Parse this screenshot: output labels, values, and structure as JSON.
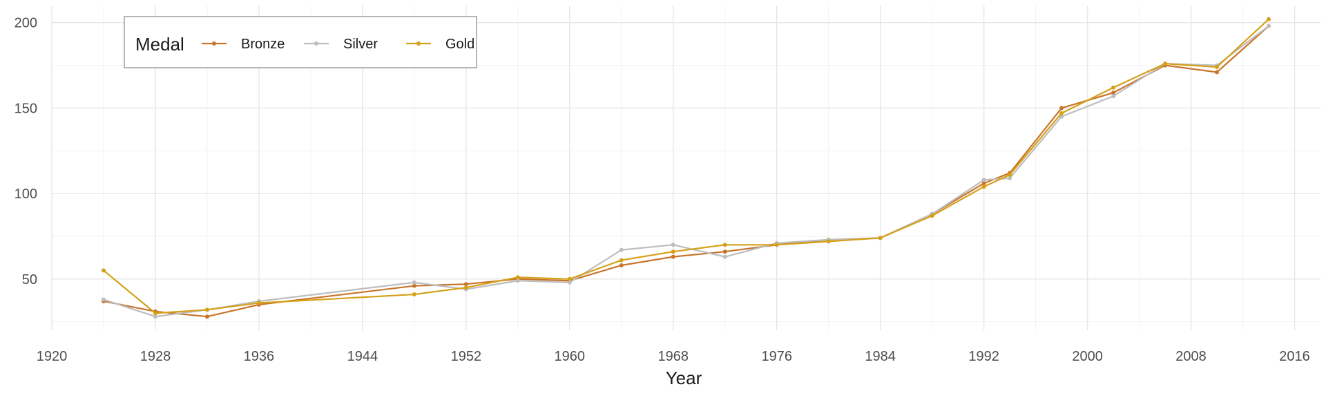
{
  "chart_data": {
    "type": "line",
    "xlabel": "Year",
    "ylabel": "",
    "xlim": [
      1920,
      2018
    ],
    "ylim": [
      20,
      210
    ],
    "x_ticks": [
      1920,
      1928,
      1936,
      1944,
      1952,
      1960,
      1968,
      1976,
      1984,
      1992,
      2000,
      2008,
      2016
    ],
    "y_ticks": [
      50,
      100,
      150,
      200
    ],
    "grid": true,
    "legend": {
      "title": "Medal",
      "position": "top-left",
      "entries": [
        "Bronze",
        "Silver",
        "Gold"
      ]
    },
    "series": [
      {
        "name": "Bronze",
        "color": "#c8742a",
        "x": [
          1924,
          1928,
          1932,
          1936,
          1948,
          1952,
          1956,
          1960,
          1964,
          1968,
          1972,
          1976,
          1980,
          1984,
          1988,
          1992,
          1994,
          1998,
          2002,
          2006,
          2010,
          2014
        ],
        "y": [
          37,
          31,
          28,
          35,
          46,
          47,
          50,
          49,
          58,
          63,
          66,
          70,
          73,
          74,
          88,
          106,
          112,
          150,
          159,
          175,
          171,
          198
        ]
      },
      {
        "name": "Silver",
        "color": "#bdbdbd",
        "x": [
          1924,
          1928,
          1932,
          1936,
          1948,
          1952,
          1956,
          1960,
          1964,
          1968,
          1972,
          1976,
          1980,
          1984,
          1988,
          1992,
          1994,
          1998,
          2002,
          2006,
          2010,
          2014
        ],
        "y": [
          38,
          28,
          32,
          37,
          48,
          44,
          49,
          48,
          67,
          70,
          63,
          71,
          73,
          74,
          88,
          108,
          109,
          145,
          157,
          176,
          175,
          198
        ]
      },
      {
        "name": "Gold",
        "color": "#d4a017",
        "x": [
          1924,
          1928,
          1932,
          1936,
          1948,
          1952,
          1956,
          1960,
          1964,
          1968,
          1972,
          1976,
          1980,
          1984,
          1988,
          1992,
          1994,
          1998,
          2002,
          2006,
          2010,
          2014
        ],
        "y": [
          55,
          30,
          32,
          36,
          41,
          45,
          51,
          50,
          61,
          66,
          70,
          70,
          72,
          74,
          87,
          104,
          111,
          147,
          162,
          176,
          174,
          202
        ]
      }
    ]
  }
}
